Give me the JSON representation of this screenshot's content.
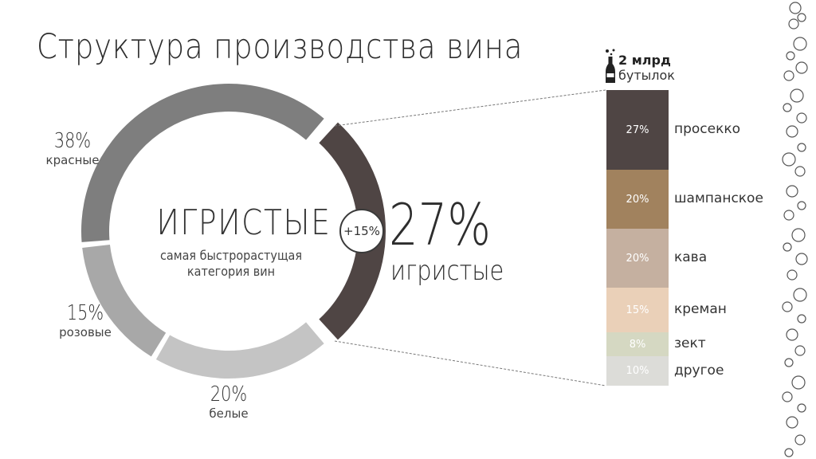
{
  "title": "Структура производства вина",
  "chart_data": [
    {
      "type": "pie",
      "categories": [
        "игристые",
        "белые",
        "розовые",
        "красные"
      ],
      "values": [
        27,
        20,
        15,
        38
      ],
      "colors": [
        "#4f4544",
        "#c4c4c4",
        "#a8a8a8",
        "#7e7e7e"
      ],
      "labels": [
        {
          "pct": "27%",
          "name": "игристые"
        },
        {
          "pct": "20%",
          "name": "белые"
        },
        {
          "pct": "15%",
          "name": "розовые"
        },
        {
          "pct": "38%",
          "name": "красные"
        }
      ],
      "center_title": "ИГРИСТЫЕ",
      "center_subtitle": [
        "самая быстрорастущая",
        "категория вин"
      ],
      "growth_badge": "+15%"
    },
    {
      "type": "bar",
      "stacked": true,
      "total_value": "2 млрд",
      "total_unit": "бутылок",
      "categories": [
        "просекко",
        "шампанское",
        "кава",
        "креман",
        "зект",
        "другое"
      ],
      "values": [
        27,
        20,
        20,
        15,
        8,
        10
      ],
      "value_labels": [
        "27%",
        "20%",
        "20%",
        "15%",
        "8%",
        "10%"
      ],
      "colors": [
        "#4f4544",
        "#a1825e",
        "#c5b0a0",
        "#ead0b8",
        "#d5d8c2",
        "#dcdcd8"
      ]
    }
  ]
}
